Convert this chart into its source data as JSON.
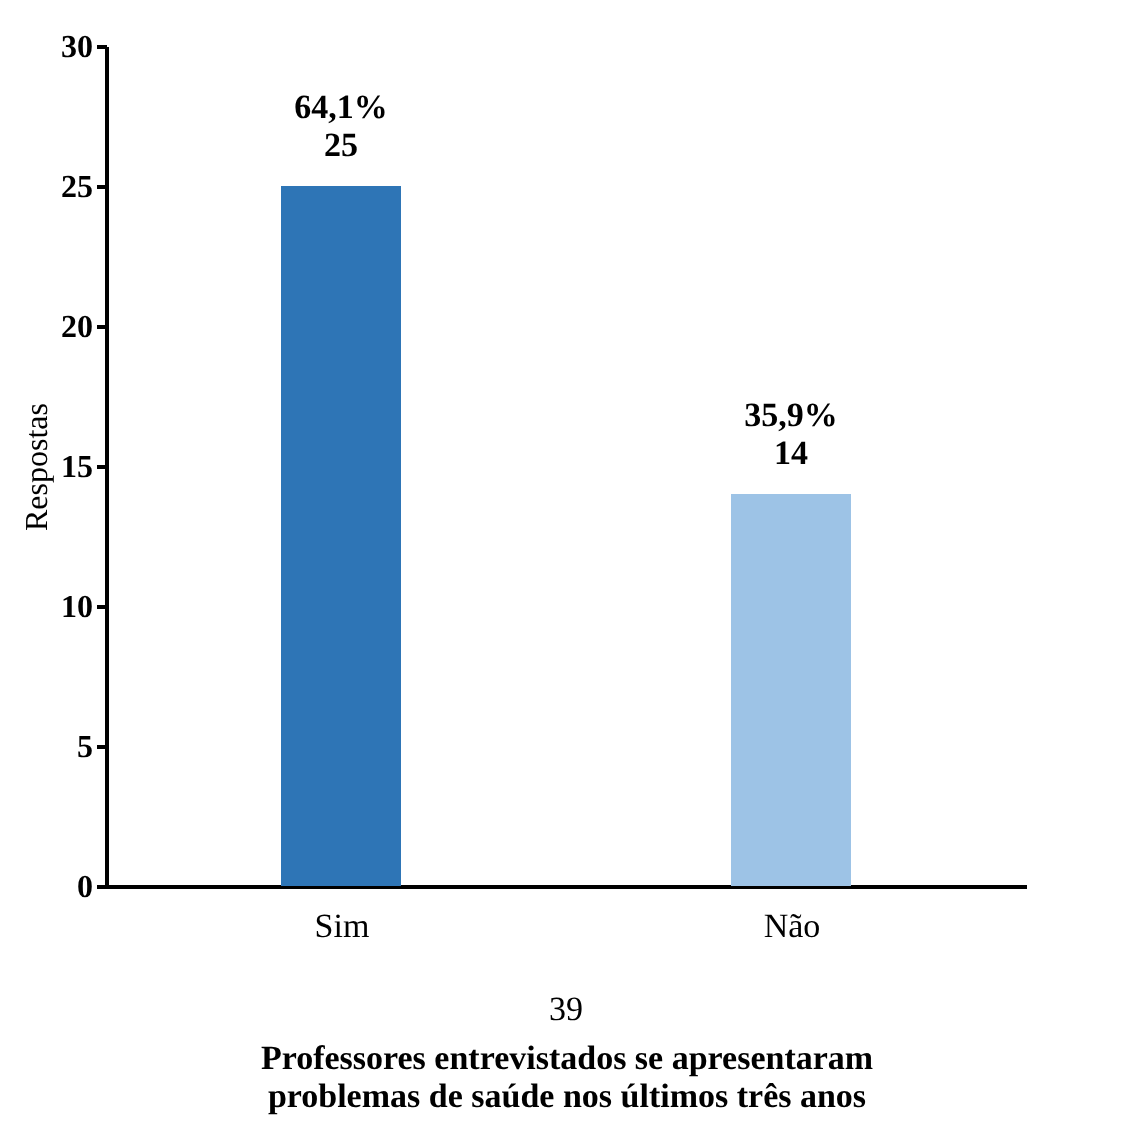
{
  "chart_data": {
    "type": "bar",
    "ylabel": "Respostas",
    "xlabel": "Professores entrevistados se apresentaram\nproblemas de saúde nos últimos três anos",
    "categories": [
      "Sim",
      "Não"
    ],
    "values": [
      25,
      14
    ],
    "colors": [
      "#2e75b6",
      "#9dc3e6"
    ],
    "value_labels": [
      "64,1%\n25",
      "35,9%\n14"
    ],
    "annotations": [
      "39"
    ],
    "ylim": [
      0,
      30
    ],
    "yticks": [
      0,
      5,
      10,
      15,
      20,
      25,
      30
    ],
    "grid": false
  }
}
